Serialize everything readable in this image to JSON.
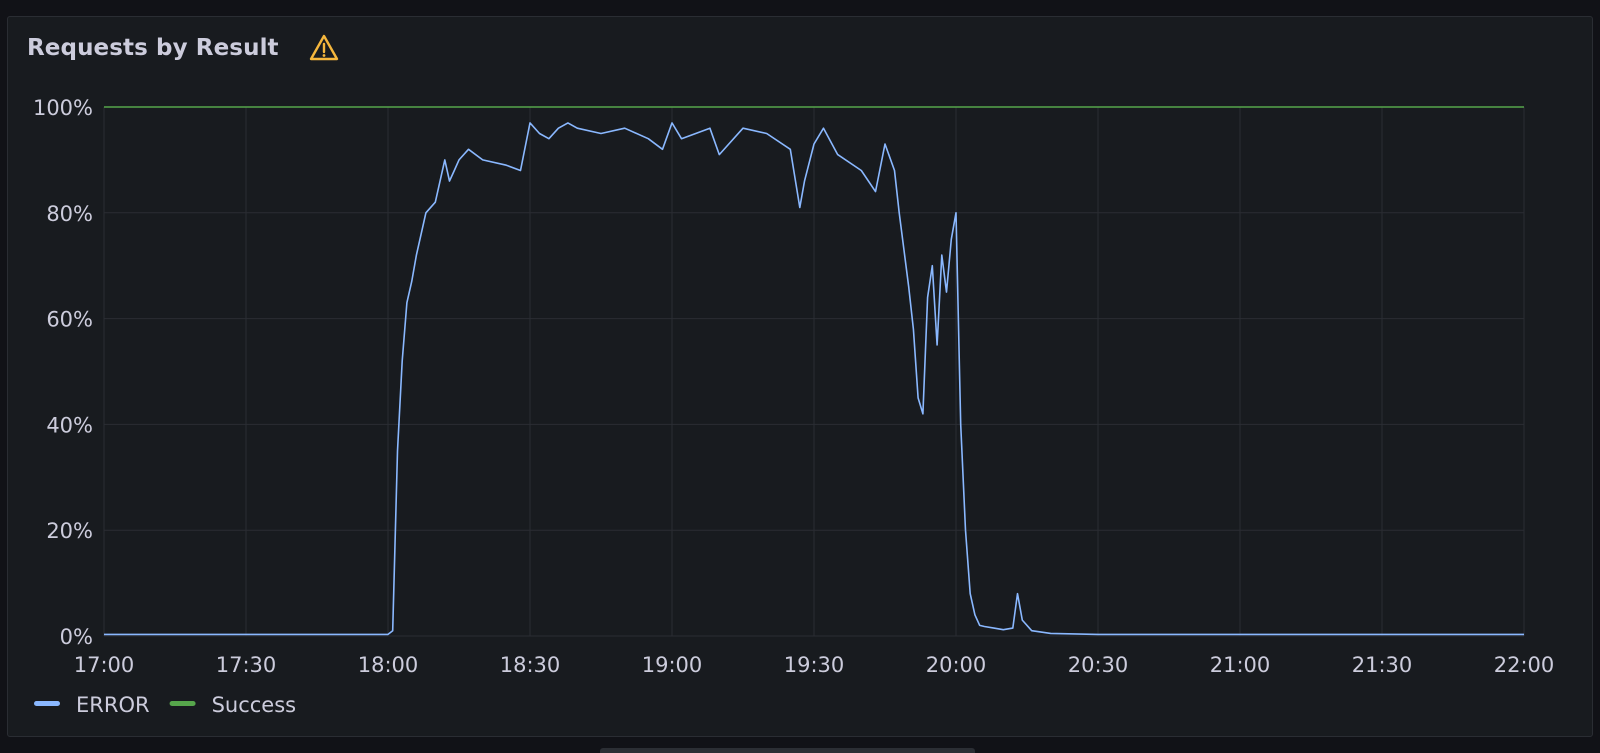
{
  "panel": {
    "title": "Requests by Result",
    "warning_icon": "warning-triangle-icon"
  },
  "colors": {
    "background": "#111217",
    "panel": "#181b1f",
    "grid": "#2a2d33",
    "error": "#8ab8ff",
    "success": "#56a64b",
    "text": "#ccccdc",
    "warning": "#f5b73d"
  },
  "chart_data": {
    "type": "line",
    "title": "Requests by Result",
    "xlabel": "",
    "ylabel": "",
    "xlim": [
      "17:00",
      "22:00"
    ],
    "ylim": [
      0,
      100
    ],
    "yunit": "%",
    "yticks": [
      "0%",
      "20%",
      "40%",
      "60%",
      "80%",
      "100%"
    ],
    "xticks": [
      "17:00",
      "17:30",
      "18:00",
      "18:30",
      "19:00",
      "19:30",
      "20:00",
      "20:30",
      "21:00",
      "21:30",
      "22:00"
    ],
    "grid": true,
    "legend": "bottom-left",
    "series": [
      {
        "name": "ERROR",
        "color": "#8ab8ff",
        "x": [
          "17:00",
          "17:30",
          "18:00",
          "18:01",
          "18:02",
          "18:03",
          "18:04",
          "18:05",
          "18:06",
          "18:08",
          "18:10",
          "18:12",
          "18:13",
          "18:14",
          "18:15",
          "18:17",
          "18:20",
          "18:25",
          "18:28",
          "18:30",
          "18:32",
          "18:34",
          "18:36",
          "18:38",
          "18:40",
          "18:45",
          "18:50",
          "18:55",
          "18:58",
          "19:00",
          "19:02",
          "19:05",
          "19:08",
          "19:10",
          "19:15",
          "19:20",
          "19:25",
          "19:27",
          "19:28",
          "19:30",
          "19:32",
          "19:35",
          "19:40",
          "19:43",
          "19:45",
          "19:47",
          "19:48",
          "19:50",
          "19:51",
          "19:52",
          "19:53",
          "19:54",
          "19:55",
          "19:56",
          "19:57",
          "19:58",
          "19:59",
          "20:00",
          "20:01",
          "20:02",
          "20:03",
          "20:04",
          "20:05",
          "20:06",
          "20:08",
          "20:10",
          "20:12",
          "20:13",
          "20:14",
          "20:16",
          "20:20",
          "20:30",
          "21:00",
          "21:30",
          "22:00"
        ],
        "values": [
          0.3,
          0.3,
          0.3,
          1,
          35,
          52,
          63,
          67,
          72,
          80,
          82,
          90,
          86,
          88,
          90,
          92,
          90,
          89,
          88,
          97,
          95,
          94,
          96,
          97,
          96,
          95,
          96,
          94,
          92,
          97,
          94,
          95,
          96,
          91,
          96,
          95,
          92,
          81,
          86,
          93,
          96,
          91,
          88,
          84,
          93,
          88,
          80,
          66,
          58,
          45,
          42,
          64,
          70,
          55,
          72,
          65,
          75,
          80,
          40,
          20,
          8,
          4,
          2,
          1.8,
          1.5,
          1.2,
          1.5,
          8,
          3,
          1,
          0.5,
          0.3,
          0.3,
          0.3,
          0.3
        ]
      },
      {
        "name": "Success",
        "color": "#56a64b",
        "x": [
          "17:00",
          "22:00"
        ],
        "values": [
          100,
          100
        ]
      }
    ]
  }
}
